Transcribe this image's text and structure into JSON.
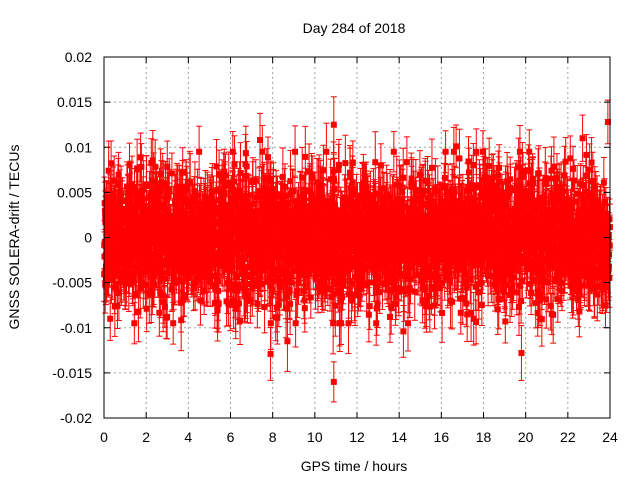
{
  "chart_data": {
    "type": "scatter",
    "title": "Day 284 of 2018",
    "xlabel": "GPS time / hours",
    "ylabel": "GNSS SOLERA-drift / TECUs",
    "xlim": [
      0,
      24
    ],
    "ylim": [
      -0.02,
      0.02
    ],
    "xticks": [
      "0",
      "2",
      "4",
      "6",
      "8",
      "10",
      "12",
      "14",
      "16",
      "18",
      "20",
      "22",
      "24"
    ],
    "yticks": [
      "-0.02",
      "-0.015",
      "-0.01",
      "-0.005",
      "0",
      "0.005",
      "0.01",
      "0.015",
      "0.02"
    ],
    "grid": true,
    "marker": "square",
    "error_bars": true,
    "point_count": 2880,
    "point_color": "#ff0000",
    "noise_sd": 0.0035,
    "notable_points": [
      {
        "x": 10.9,
        "y": 0.0125
      },
      {
        "x": 10.9,
        "y": -0.016
      },
      {
        "x": 23.9,
        "y": 0.0128
      },
      {
        "x": 7.9,
        "y": -0.0129
      },
      {
        "x": 8.7,
        "y": -0.0115
      },
      {
        "x": 19.8,
        "y": -0.0128
      },
      {
        "x": 16.7,
        "y": 0.0101
      },
      {
        "x": 22.7,
        "y": 0.011
      },
      {
        "x": 7.4,
        "y": 0.0108
      },
      {
        "x": 14.2,
        "y": -0.0104
      }
    ]
  }
}
